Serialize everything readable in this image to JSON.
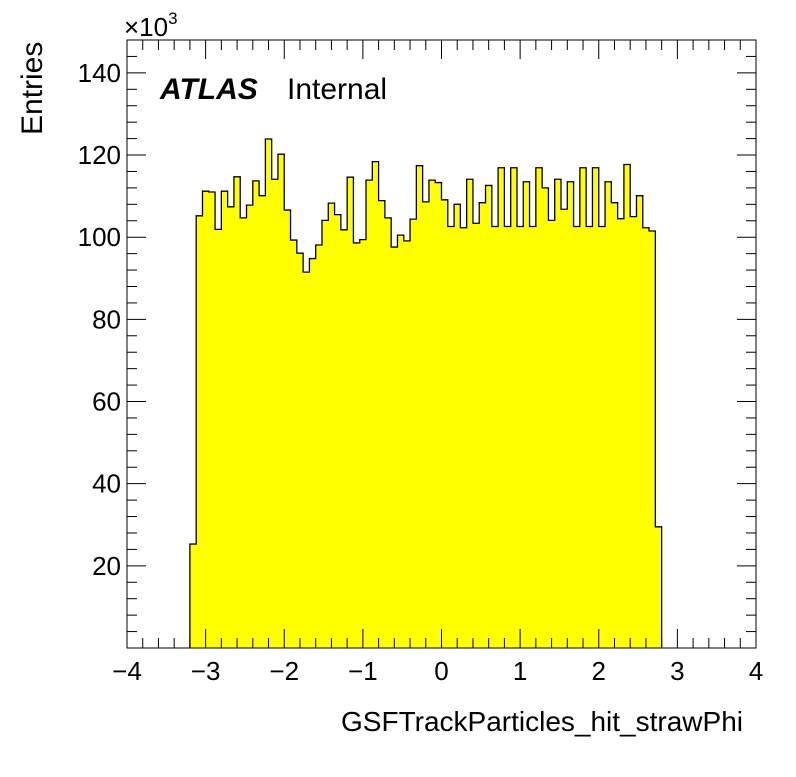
{
  "chart_data": {
    "type": "bar",
    "title": "",
    "xlabel": "GSFTrackParticles_hit_strawPhi",
    "ylabel": "Entries",
    "y_multiplier_label": "×10",
    "y_multiplier_exp": "3",
    "experiment_label": "ATLAS",
    "status_label": "Internal",
    "xlim": [
      -4,
      4
    ],
    "ylim": [
      0,
      148
    ],
    "x_major_ticks": [
      -4,
      -3,
      -2,
      -1,
      0,
      1,
      2,
      3,
      4
    ],
    "x_tick_labels": [
      "−4",
      "−3",
      "−2",
      "−1",
      "0",
      "1",
      "2",
      "3",
      "4"
    ],
    "y_major_ticks": [
      20,
      40,
      60,
      80,
      100,
      120,
      140
    ],
    "y_tick_labels": [
      "20",
      "40",
      "60",
      "80",
      "100",
      "120",
      "140"
    ],
    "grid": false,
    "fill_color": "#ffff00",
    "line_color": "#000000",
    "bin_edges_start": -3.2,
    "bin_width": 0.08,
    "values": [
      25.3,
      105.2,
      111.2,
      111.0,
      101.9,
      111.2,
      107.4,
      114.7,
      104.7,
      107.8,
      113.7,
      110.1,
      123.9,
      114.1,
      120.2,
      106.6,
      99.3,
      96.1,
      91.5,
      94.8,
      98.1,
      104.1,
      108.3,
      105.5,
      101.8,
      114.6,
      98.6,
      99.4,
      113.9,
      118.4,
      108.9,
      104.7,
      97.6,
      100.5,
      99.1,
      104.4,
      117.4,
      108.6,
      113.9,
      113.3,
      109.1,
      102.6,
      108.0,
      102.3,
      114.1,
      103.4,
      108.4,
      112.6,
      102.6,
      116.9,
      102.6,
      116.9,
      102.6,
      113.5,
      102.6,
      116.9,
      112.0,
      104.1,
      114.1,
      106.8,
      113.5,
      102.6,
      116.9,
      102.6,
      116.9,
      102.6,
      113.5,
      108.4,
      104.5,
      117.7,
      105.0,
      110.1,
      102.3,
      101.5,
      29.5
    ]
  }
}
